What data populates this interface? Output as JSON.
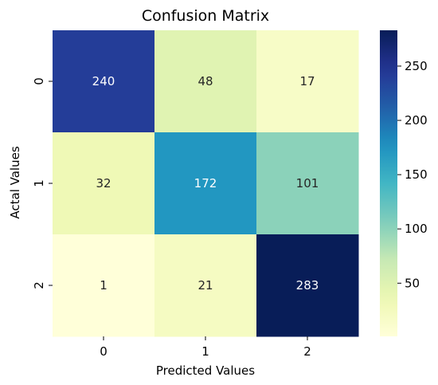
{
  "chart_data": {
    "type": "heatmap",
    "title": "Confusion Matrix",
    "xlabel": "Predicted Values",
    "ylabel": "Actal Values",
    "x_categories": [
      "0",
      "1",
      "2"
    ],
    "y_categories": [
      "0",
      "1",
      "2"
    ],
    "values": [
      [
        240,
        48,
        17
      ],
      [
        32,
        172,
        101
      ],
      [
        1,
        21,
        283
      ]
    ],
    "colormap": "YlGnBu",
    "colorbar": {
      "ticks": [
        "50",
        "100",
        "150",
        "200",
        "250"
      ],
      "tick_values": [
        50,
        100,
        150,
        200,
        250
      ],
      "range": [
        1,
        283
      ]
    }
  }
}
